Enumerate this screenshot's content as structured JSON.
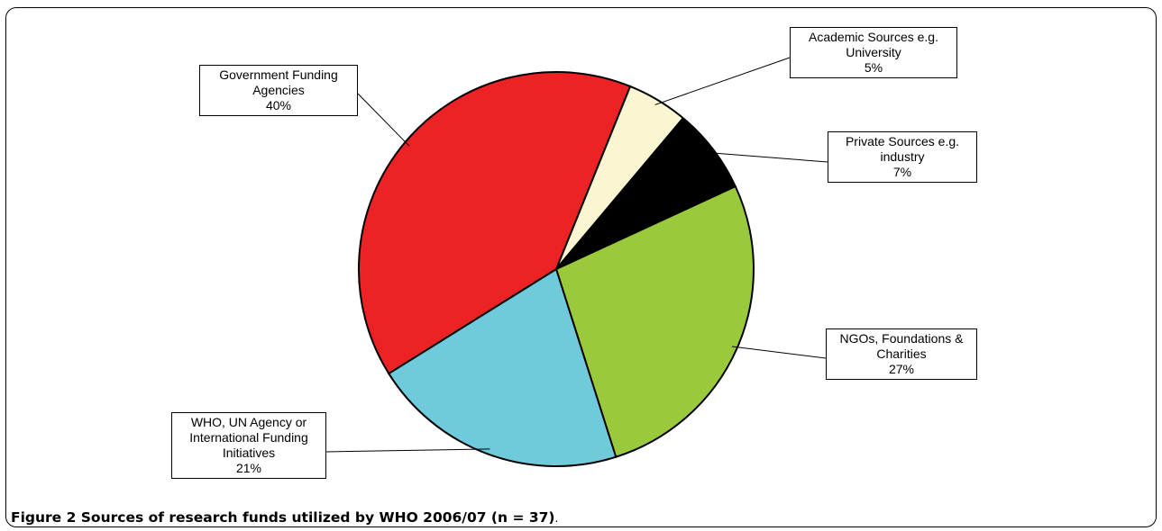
{
  "chart_data": {
    "type": "pie",
    "slices": [
      {
        "label": "Academic Sources e.g. University",
        "value": 5,
        "value_label": "5%",
        "color": "#FAF6D2"
      },
      {
        "label": "Private Sources e.g. industry",
        "value": 7,
        "value_label": "7%",
        "color": "#000000"
      },
      {
        "label": "NGOs, Foundations & Charities",
        "value": 27,
        "value_label": "27%",
        "color": "#9ACA3C"
      },
      {
        "label": "WHO, UN Agency or International Funding Initiatives",
        "value": 21,
        "value_label": "21%",
        "color": "#6FCBDC"
      },
      {
        "label": "Government Funding Agencies",
        "value": 40,
        "value_label": "40%",
        "color": "#ED2224"
      }
    ]
  },
  "labels": {
    "academic": "Academic Sources e.g.\nUniversity\n5%",
    "private": "Private Sources e.g.\nindustry\n7%",
    "ngo": "NGOs, Foundations &\nCharities\n27%",
    "who": "WHO, UN Agency or\nInternational Funding\nInitiatives\n21%",
    "gov": "Government Funding\nAgencies\n40%"
  },
  "caption": {
    "bold": "Figure 2 Sources of research funds utilized by WHO 2006/07 (n = 37)",
    "tail": "."
  }
}
